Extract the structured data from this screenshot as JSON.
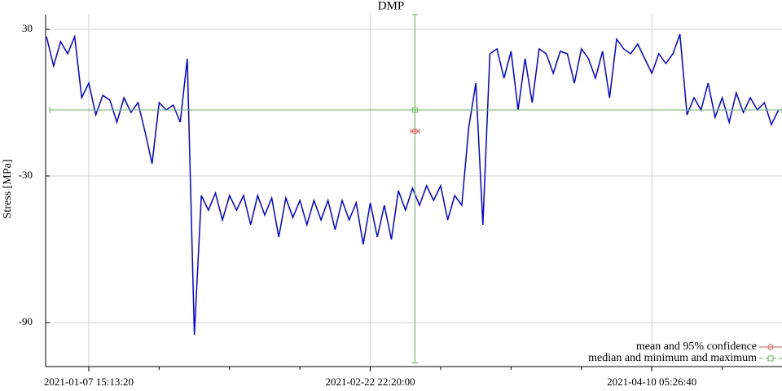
{
  "chart_data": {
    "type": "line",
    "title": "DMP",
    "y_label": "Stress [MPa]",
    "color": "#0000ee",
    "xlim": [
      1609387000,
      1619850000
    ],
    "ylim": [
      -108,
      36
    ],
    "xticks": [
      {
        "value": 1610000000,
        "label": "2021-01-07 15:13:20"
      },
      {
        "value": 1614000000,
        "label": "2021-02-22 22:20:00"
      },
      {
        "value": 1618000000,
        "label": "2021-04-10 05:26:40"
      }
    ],
    "xminorticks": [
      1611000000,
      1612000000,
      1613000000,
      1615000000,
      1616000000,
      1617000000,
      1619000000
    ],
    "yticks": [
      30,
      -30,
      -90
    ],
    "grid": true,
    "legend": "lower right",
    "x": [
      1609400000,
      1609500000,
      1609600000,
      1609700000,
      1609800000,
      1609900000,
      1610000000,
      1610100000,
      1610200000,
      1610300000,
      1610400000,
      1610500000,
      1610600000,
      1610700000,
      1610800000,
      1610900000,
      1611000000,
      1611100000,
      1611200000,
      1611300000,
      1611400000,
      1611500000,
      1611600000,
      1611700000,
      1611800000,
      1611900000,
      1612000000,
      1612100000,
      1612200000,
      1612300000,
      1612400000,
      1612500000,
      1612600000,
      1612700000,
      1612800000,
      1612900000,
      1613000000,
      1613100000,
      1613200000,
      1613300000,
      1613400000,
      1613500000,
      1613600000,
      1613700000,
      1613800000,
      1613900000,
      1614000000,
      1614100000,
      1614200000,
      1614300000,
      1614400000,
      1614500000,
      1614600000,
      1614700000,
      1614800000,
      1614900000,
      1615000000,
      1615100000,
      1615200000,
      1615300000,
      1615400000,
      1615500000,
      1615600000,
      1615700000,
      1615800000,
      1615900000,
      1616000000,
      1616100000,
      1616200000,
      1616300000,
      1616400000,
      1616500000,
      1616600000,
      1616700000,
      1616800000,
      1616900000,
      1617000000,
      1617100000,
      1617200000,
      1617300000,
      1617400000,
      1617500000,
      1617600000,
      1617700000,
      1617800000,
      1617900000,
      1618000000,
      1618100000,
      1618200000,
      1618300000,
      1618400000,
      1618500000,
      1618600000,
      1618700000,
      1618800000,
      1618900000,
      1619000000,
      1619100000,
      1619200000,
      1619300000,
      1619400000,
      1619500000,
      1619600000,
      1619700000,
      1619800000
    ],
    "values": [
      27,
      15,
      25,
      20,
      27,
      2,
      8,
      -5,
      3,
      1,
      -8,
      2,
      -4,
      0,
      -12,
      -25,
      0,
      -3,
      -1,
      -8,
      18,
      -95,
      -38,
      -44,
      -37,
      -48,
      -38,
      -44,
      -38,
      -50,
      -38,
      -46,
      -39,
      -55,
      -39,
      -47,
      -40,
      -50,
      -40,
      -48,
      -40,
      -52,
      -40,
      -48,
      -41,
      -58,
      -41,
      -55,
      -42,
      -56,
      -36,
      -44,
      -35,
      -42,
      -34,
      -40,
      -34,
      -48,
      -38,
      -42,
      -10,
      8,
      -50,
      20,
      22,
      10,
      21,
      -3,
      18,
      0,
      22,
      20,
      12,
      21,
      20,
      8,
      22,
      18,
      10,
      21,
      2,
      26,
      22,
      20,
      24,
      18,
      12,
      20,
      16,
      20,
      28,
      -5,
      2,
      -3,
      8,
      -6,
      2,
      -8,
      4,
      -4,
      2,
      -3,
      0,
      -9,
      -3
    ],
    "mean": {
      "name": "mean and 95% confidence",
      "color": "#ee5555",
      "x": 1614635000,
      "y": -11.7,
      "x_error": 58000,
      "y_error": 0.6
    },
    "median": {
      "name": "median and minimum and maximum",
      "color": "#66bb55",
      "x": 1614635000,
      "y": -3,
      "xmin": 1609445000,
      "xmax": 1619850000,
      "ymin": -106.5,
      "ymax": 36
    }
  }
}
